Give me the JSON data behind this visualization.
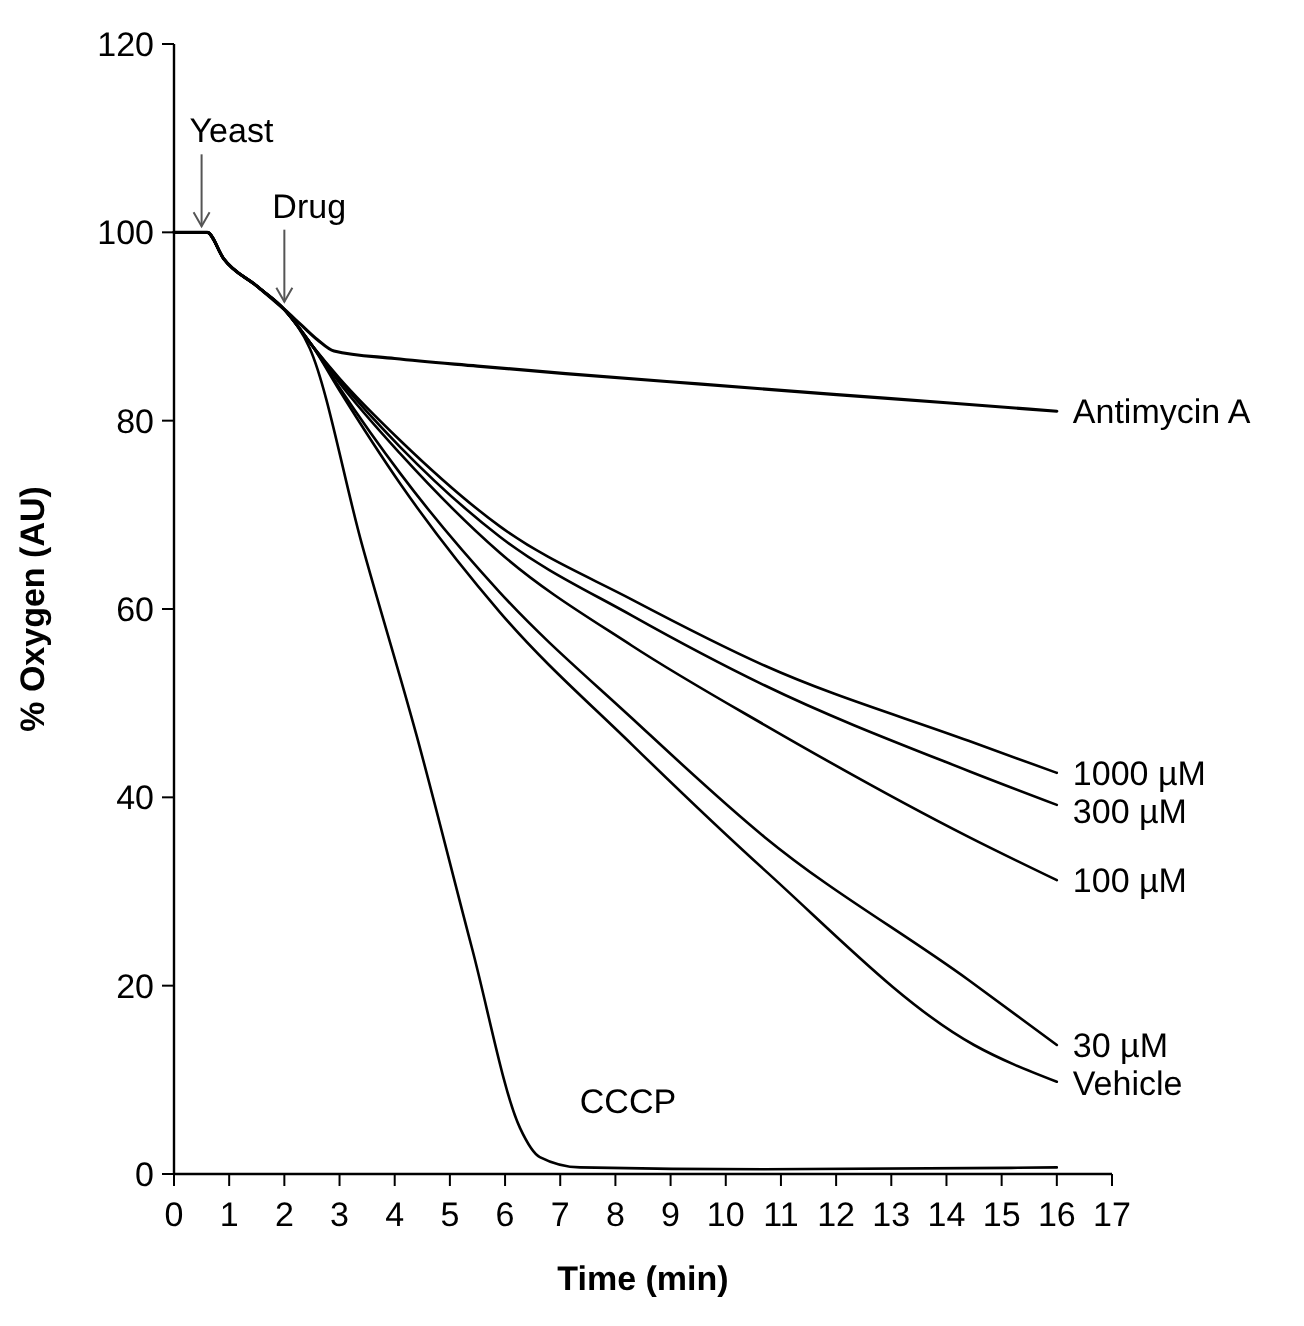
{
  "chart_data": {
    "type": "line",
    "xlabel": "Time (min)",
    "ylabel": "% Oxygen (AU)",
    "xlim": [
      0,
      17
    ],
    "ylim": [
      0,
      120
    ],
    "xticks": [
      0,
      1,
      2,
      3,
      4,
      5,
      6,
      7,
      8,
      9,
      10,
      11,
      12,
      13,
      14,
      15,
      16,
      17
    ],
    "yticks": [
      0,
      20,
      40,
      60,
      80,
      100,
      120
    ],
    "grid": false,
    "marker": "none",
    "line_style": "solid",
    "annotations": [
      {
        "text": "Yeast",
        "x": 0.5,
        "y": 100
      },
      {
        "text": "Drug",
        "x": 2,
        "y": 92
      }
    ],
    "series": [
      {
        "name": "Antimycin A",
        "color": "#000000",
        "x": [
          0,
          0.6,
          0.9,
          1.5,
          2,
          2.3,
          2.6,
          2.9,
          4,
          5.5,
          7.1,
          9.5,
          11.95,
          14,
          16
        ],
        "values": [
          100,
          100,
          97.2,
          94.3,
          91.8,
          90.2,
          88.6,
          87.4,
          86.6,
          85.8,
          85,
          83.9,
          82.8,
          81.9,
          81
        ]
      },
      {
        "name": "1000 µM",
        "color": "#000000",
        "x": [
          0,
          0.6,
          0.9,
          1.5,
          2,
          2.5,
          3,
          4.1,
          5.9,
          8.3,
          10.7,
          14.4,
          16
        ],
        "values": [
          100,
          100,
          97.2,
          94.3,
          91.8,
          88,
          84.5,
          77.9,
          68.8,
          61,
          54,
          46,
          42.6
        ]
      },
      {
        "name": "300 µM",
        "color": "#000000",
        "x": [
          0,
          0.6,
          0.9,
          1.5,
          2,
          2.5,
          3,
          4.1,
          5.9,
          8.3,
          10.7,
          14.4,
          16
        ],
        "values": [
          100,
          100,
          97.2,
          94.3,
          91.8,
          88,
          84.3,
          77.2,
          67.7,
          59.3,
          51.9,
          42.8,
          39.2
        ]
      },
      {
        "name": "100 µM",
        "color": "#000000",
        "x": [
          0,
          0.6,
          0.9,
          1.5,
          2,
          2.5,
          3,
          4.1,
          5.9,
          8.3,
          10.7,
          14.4,
          16
        ],
        "values": [
          100,
          100,
          97.2,
          94.3,
          91.8,
          88,
          84,
          76.5,
          66,
          56.1,
          47.7,
          35.8,
          31.2
        ]
      },
      {
        "name": "30 µM",
        "color": "#000000",
        "x": [
          0,
          0.6,
          0.9,
          1.5,
          2,
          2.5,
          3,
          4.1,
          5.9,
          8.3,
          10.7,
          14.4,
          16
        ],
        "values": [
          100,
          100,
          97.2,
          94.3,
          91.8,
          88,
          83.5,
          74.4,
          61.8,
          48.4,
          35.8,
          20.6,
          13.7
        ]
      },
      {
        "name": "Vehicle",
        "color": "#000000",
        "x": [
          0,
          0.6,
          0.9,
          1.5,
          2,
          2.5,
          3,
          4.1,
          5.9,
          8.3,
          10.7,
          14.5,
          16
        ],
        "values": [
          100,
          100,
          97.2,
          94.3,
          91.8,
          88,
          83.2,
          73.3,
          59.7,
          45.6,
          32.3,
          13.7,
          9.8
        ]
      },
      {
        "name": "CCCP",
        "color": "#000000",
        "x": [
          0,
          0.6,
          0.9,
          1.5,
          2,
          2.46,
          3.4,
          4.4,
          5.4,
          6.27,
          6.63,
          7.36,
          10.7,
          16
        ],
        "values": [
          100,
          100,
          97.2,
          94.3,
          91.8,
          87.7,
          67,
          46.5,
          24,
          4.9,
          1.8,
          0.7,
          0.5,
          0.7
        ]
      }
    ]
  }
}
